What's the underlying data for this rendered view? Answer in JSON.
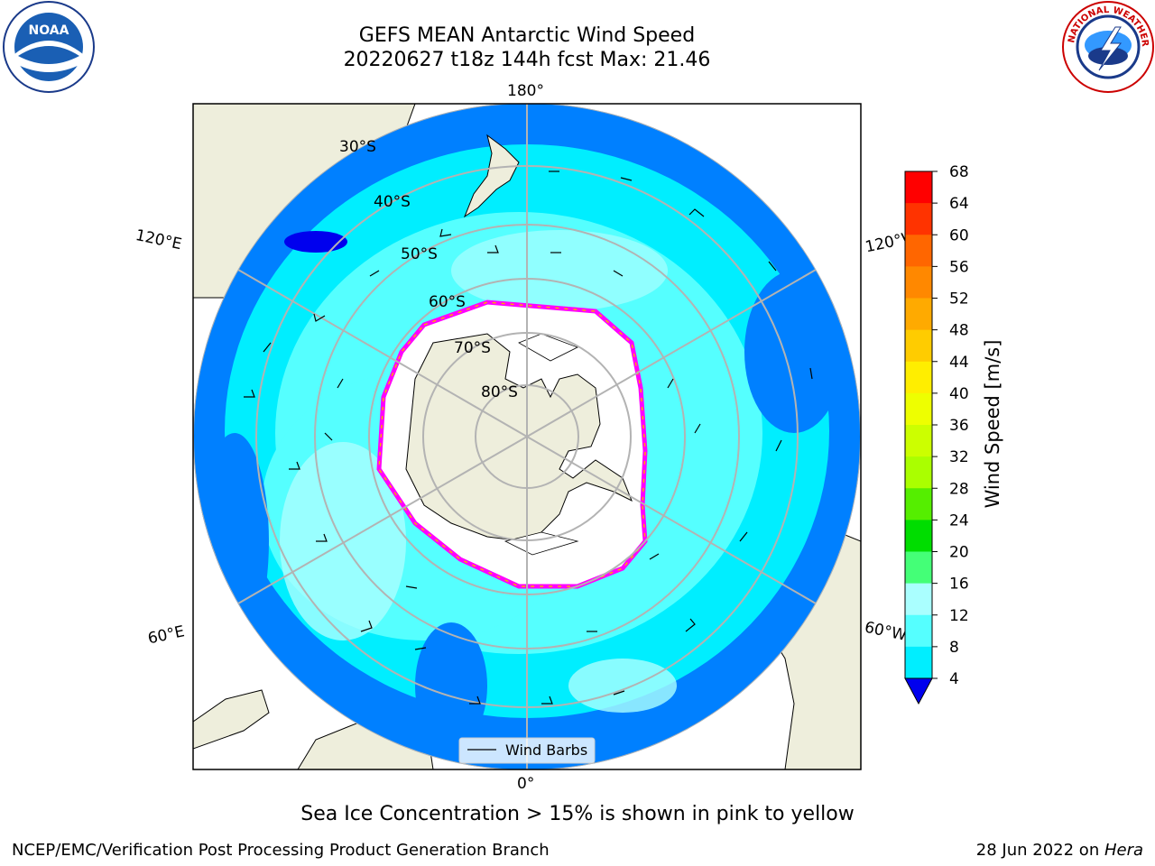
{
  "title_line1": "GEFS MEAN Antarctic Wind Speed",
  "title_line2": "20220627 t18z 144h fcst   Max: 21.46",
  "note": "Sea Ice Concentration > 15% is shown in pink to yellow",
  "footer_left": "NCEP/EMC/Verification Post Processing Product Generation Branch",
  "footer_date": "28 Jun 2022 on ",
  "footer_machine": "Hera",
  "legend_label": "Wind Barbs",
  "colorbar": {
    "label": "Wind Speed [m/s]",
    "ticks": [
      "68",
      "64",
      "60",
      "56",
      "52",
      "48",
      "44",
      "40",
      "36",
      "32",
      "28",
      "24",
      "20",
      "16",
      "12",
      "8",
      "4"
    ],
    "colors": [
      "#ff0000",
      "#ff3300",
      "#ff6600",
      "#ff8800",
      "#ffaa00",
      "#ffcc00",
      "#ffee00",
      "#eeff00",
      "#ccff00",
      "#aaff00",
      "#55ee00",
      "#00dd00",
      "#44ff77",
      "#aaffff",
      "#55ffff",
      "#00eeff",
      "#0088ff"
    ],
    "extend_color": "#0000ee"
  },
  "map": {
    "lon_labels": {
      "top": "180°",
      "bottom": "0°",
      "upper_left": "120°E",
      "upper_right": "120°W",
      "lower_left": "60°E",
      "lower_right": "60°W"
    },
    "lat_labels": [
      "30°S",
      "40°S",
      "50°S",
      "60°S",
      "70°S",
      "80°S"
    ],
    "ocean_colors": {
      "deep": "#0080ff",
      "mid": "#00eeff",
      "light": "#55ffff",
      "palest": "#aaffff"
    },
    "land_color": "#eeeedc",
    "ice_color": "#ffffff",
    "ice_edge_colors": [
      "#ff00ff",
      "#ffaa00"
    ]
  }
}
